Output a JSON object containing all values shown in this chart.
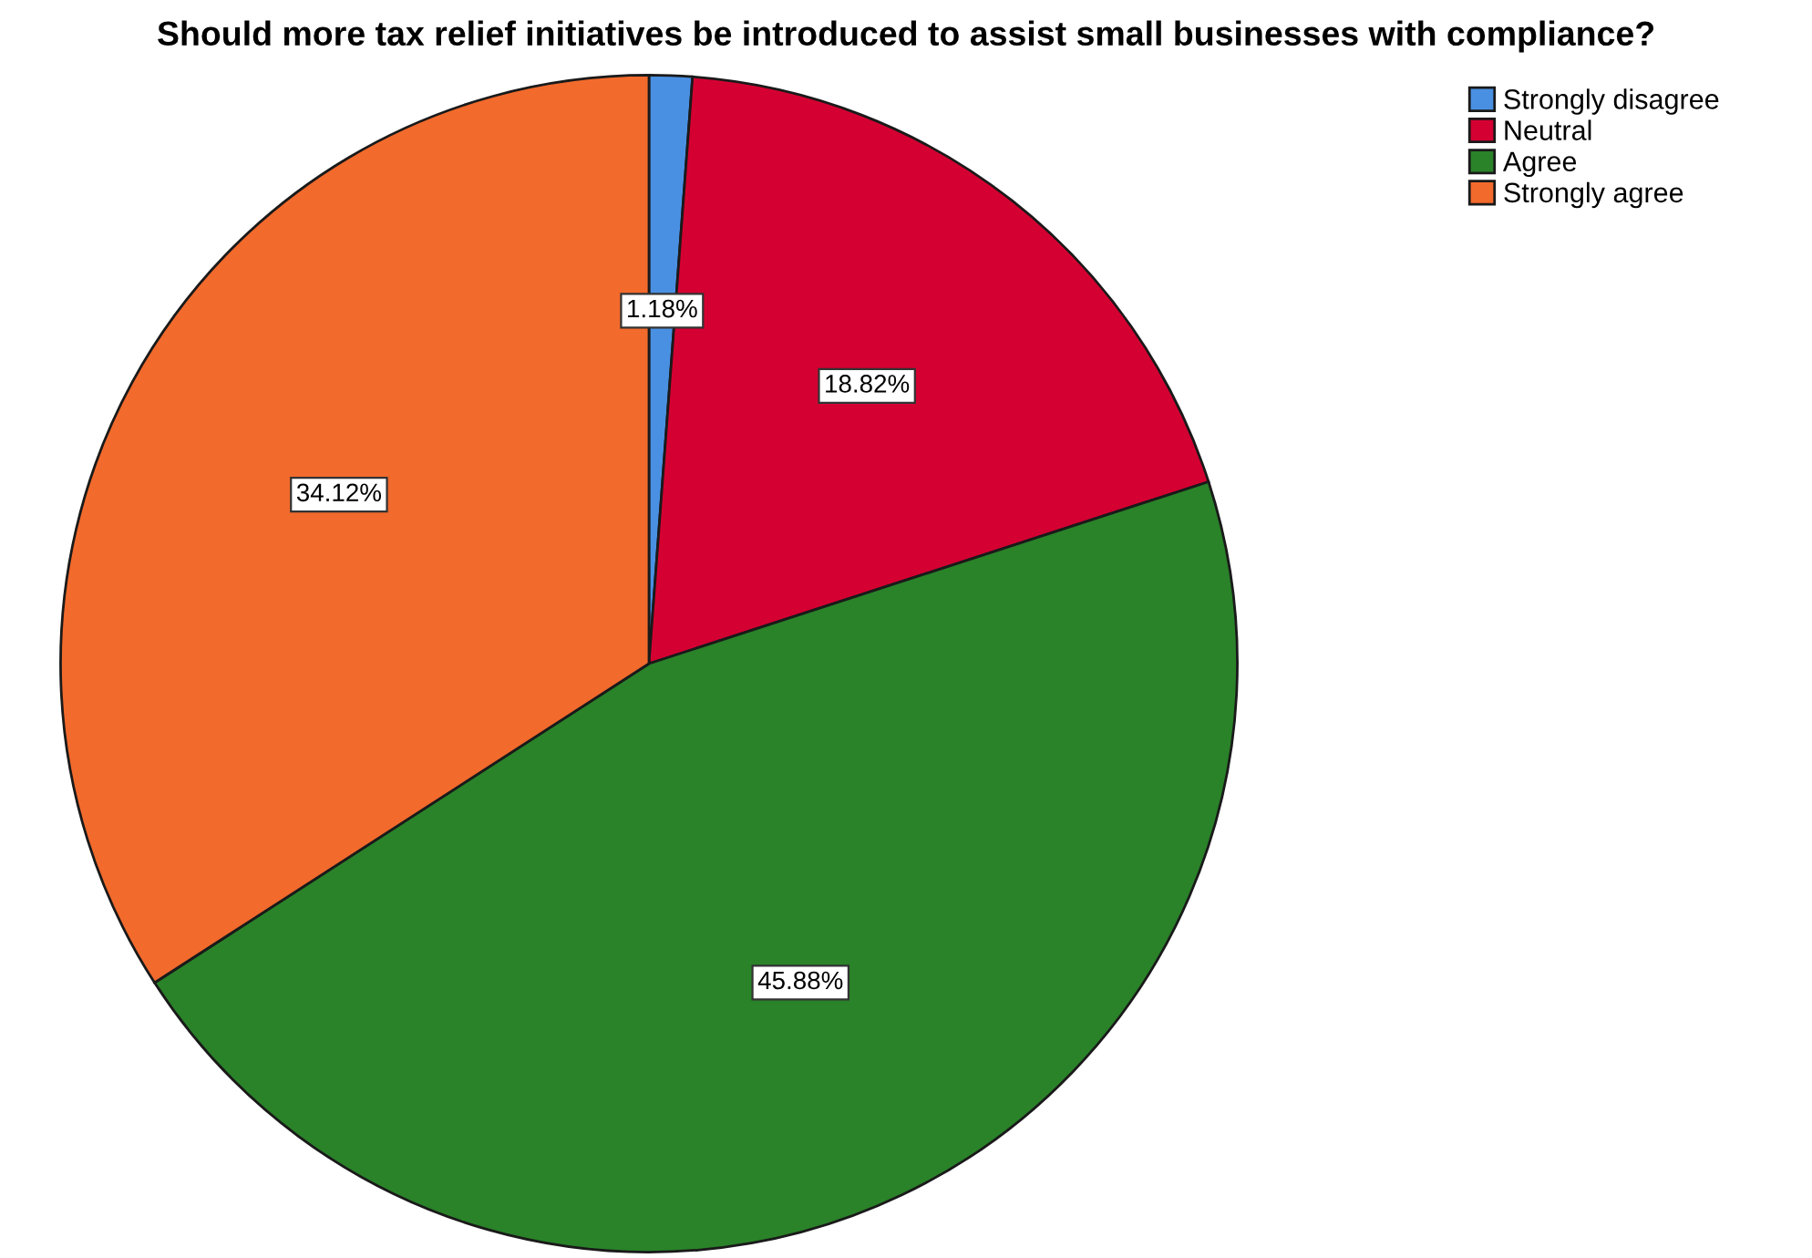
{
  "chart_data": {
    "type": "pie",
    "title": "Should more tax relief initiatives be introduced to assist small businesses with compliance?",
    "categories": [
      "Strongly disagree",
      "Neutral",
      "Agree",
      "Strongly agree"
    ],
    "values": [
      1.18,
      18.82,
      45.88,
      34.12
    ],
    "colors": [
      "#4a90e2",
      "#d50032",
      "#2a8229",
      "#f26a2c"
    ],
    "value_labels": [
      "1.18%",
      "18.82%",
      "45.88%",
      "34.12%"
    ],
    "legend": "top right"
  }
}
